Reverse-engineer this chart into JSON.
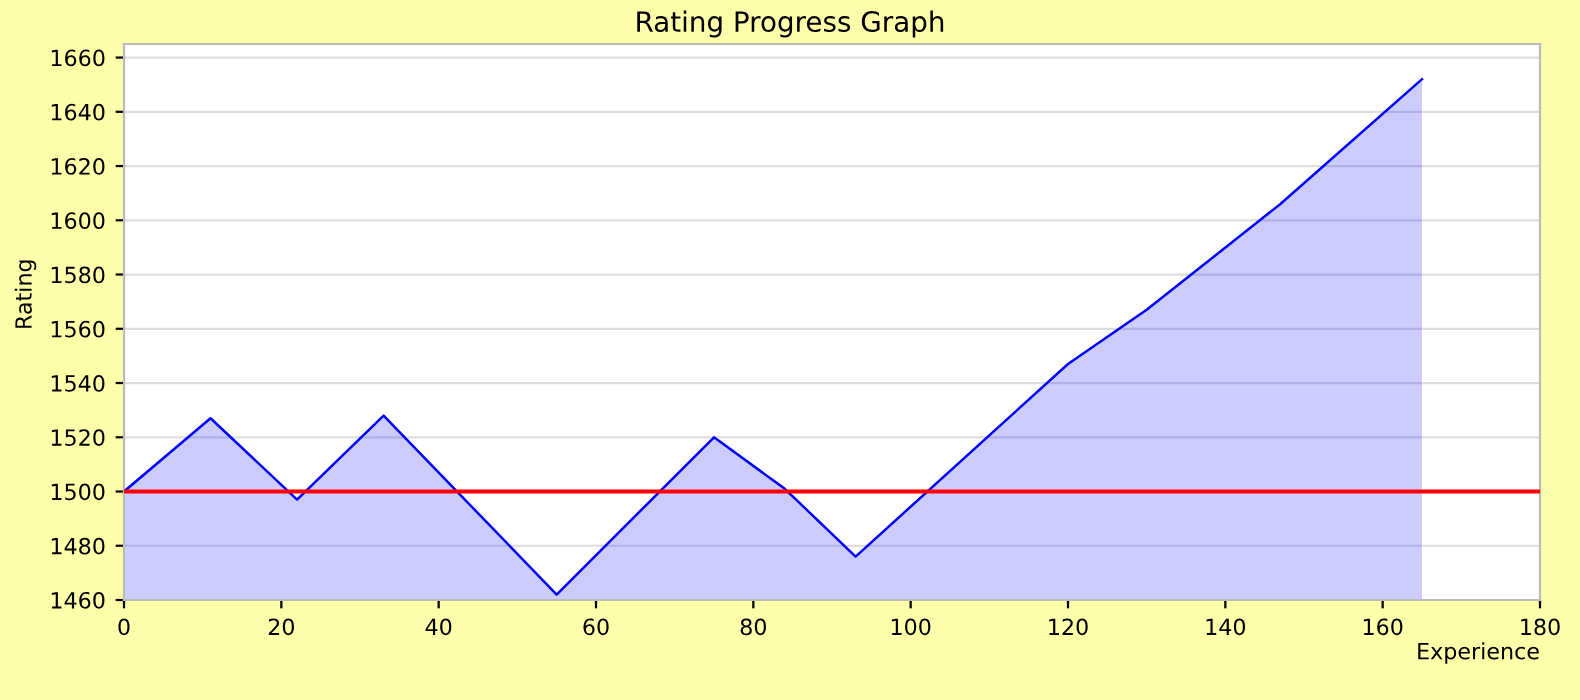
{
  "chart_data": {
    "type": "area",
    "title": "Rating Progress Graph",
    "xlabel": "Experience",
    "ylabel": "Rating",
    "x": [
      0,
      11,
      22,
      33,
      55,
      75,
      84,
      93,
      120,
      130,
      147,
      165
    ],
    "series": [
      {
        "color": "#0000ff",
        "values": [
          1500,
          1527,
          1497,
          1528,
          1462,
          1520,
          1501,
          1476,
          1547,
          1567,
          1606,
          1652
        ]
      }
    ],
    "xlim": [
      0,
      180
    ],
    "xticks": [
      0,
      20,
      40,
      60,
      80,
      100,
      120,
      140,
      160,
      180
    ],
    "ylim": [
      1460,
      1665
    ],
    "yticks": [
      1460,
      1480,
      1500,
      1520,
      1540,
      1560,
      1580,
      1600,
      1620,
      1640,
      1660
    ],
    "ref_lines": [
      {
        "axis": "y",
        "value": 1500,
        "color": "#ff0000"
      }
    ],
    "grid": "y",
    "marker": "none",
    "line_style": "solid"
  }
}
